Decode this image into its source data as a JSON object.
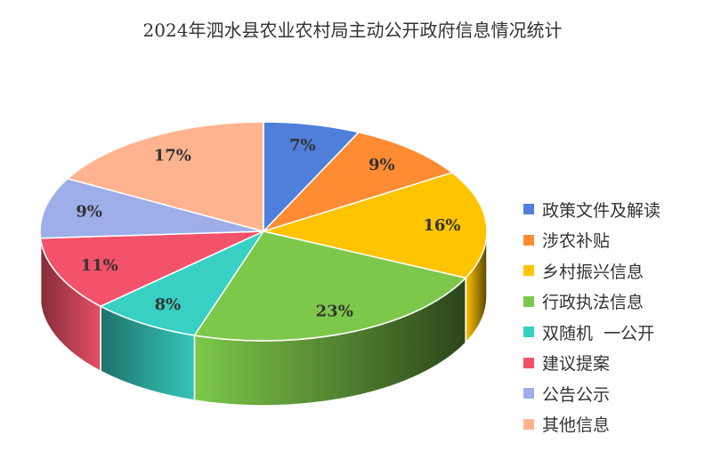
{
  "chart_data": {
    "type": "pie",
    "title": "2024年泗水县农业农村局主动公开政府信息情况统计",
    "slices": [
      {
        "label": "政策文件及解读",
        "value": 7,
        "display": "7%",
        "color": "#4F7FDB"
      },
      {
        "label": "涉农补贴",
        "value": 9,
        "display": "9%",
        "color": "#FF8C32"
      },
      {
        "label": "乡村振兴信息",
        "value": 16,
        "display": "16%",
        "color": "#FFC400"
      },
      {
        "label": "行政执法信息",
        "value": 23,
        "display": "23%",
        "color": "#7DC84A"
      },
      {
        "label": "双随机  一公开",
        "value": 8,
        "display": "8%",
        "color": "#38D0C2"
      },
      {
        "label": "建议提案",
        "value": 11,
        "display": "11%",
        "color": "#F2526A"
      },
      {
        "label": "公告公示",
        "value": 9,
        "display": "9%",
        "color": "#9DAEE8"
      },
      {
        "label": "其他信息",
        "value": 17,
        "display": "17%",
        "color": "#FFB48F"
      }
    ],
    "legend_position": "right"
  }
}
